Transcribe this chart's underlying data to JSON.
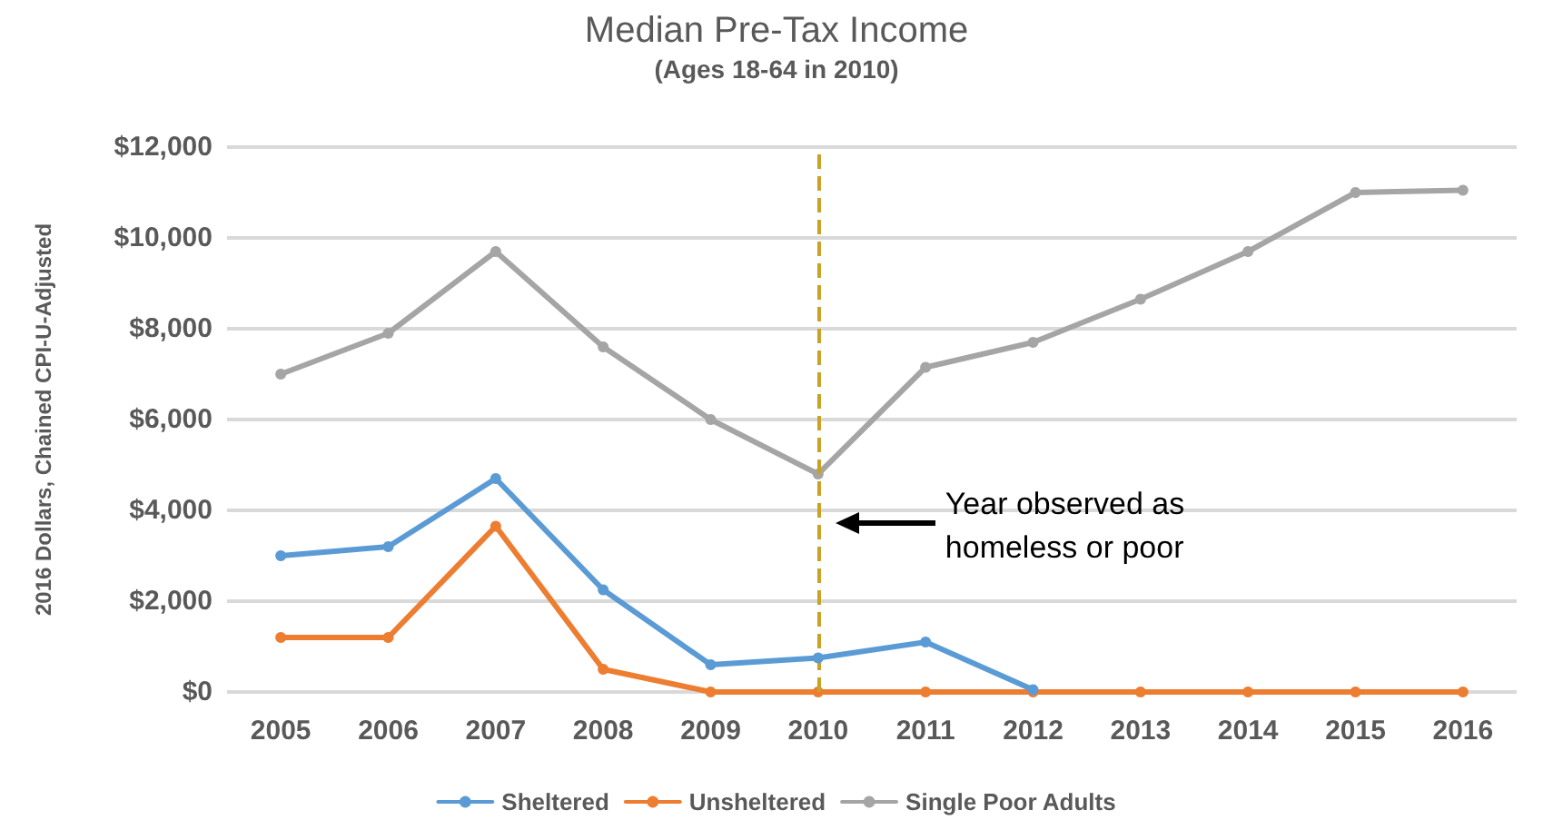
{
  "chart_data": {
    "type": "line",
    "title": "Median Pre-Tax Income",
    "subtitle": "(Ages 18-64 in 2010)",
    "ylabel": "2016 Dollars, Chained CPI-U-Adjusted",
    "categories": [
      "2005",
      "2006",
      "2007",
      "2008",
      "2009",
      "2010",
      "2011",
      "2012",
      "2013",
      "2014",
      "2015",
      "2016"
    ],
    "series": [
      {
        "name": "Sheltered",
        "color": "#5b9bd5",
        "values": [
          3000,
          3200,
          4700,
          2250,
          600,
          750,
          1100,
          50,
          null,
          null,
          null,
          null
        ]
      },
      {
        "name": "Unsheltered",
        "color": "#ed7d31",
        "values": [
          1200,
          1200,
          3650,
          500,
          0,
          0,
          0,
          0,
          0,
          0,
          0,
          0
        ]
      },
      {
        "name": "Single Poor Adults",
        "color": "#a5a5a5",
        "values": [
          7000,
          7900,
          9700,
          7600,
          6000,
          4800,
          7150,
          7700,
          8650,
          9700,
          11000,
          11050
        ]
      }
    ],
    "ylim": [
      0,
      12000
    ],
    "yticks": [
      {
        "value": 0,
        "label": "$0"
      },
      {
        "value": 2000,
        "label": "$2,000"
      },
      {
        "value": 4000,
        "label": "$4,000"
      },
      {
        "value": 6000,
        "label": "$6,000"
      },
      {
        "value": 8000,
        "label": "$8,000"
      },
      {
        "value": 10000,
        "label": "$10,000"
      },
      {
        "value": 12000,
        "label": "$12,000"
      }
    ],
    "grid": "y",
    "legend": "bottom",
    "marker": "circle",
    "line_style": "solid",
    "ref_lines": [
      {
        "axis": "x",
        "value": "2010",
        "color": "#c9a227",
        "line_style": "dashed"
      }
    ],
    "annotations": [
      "Year observed as homeless or poor"
    ]
  }
}
